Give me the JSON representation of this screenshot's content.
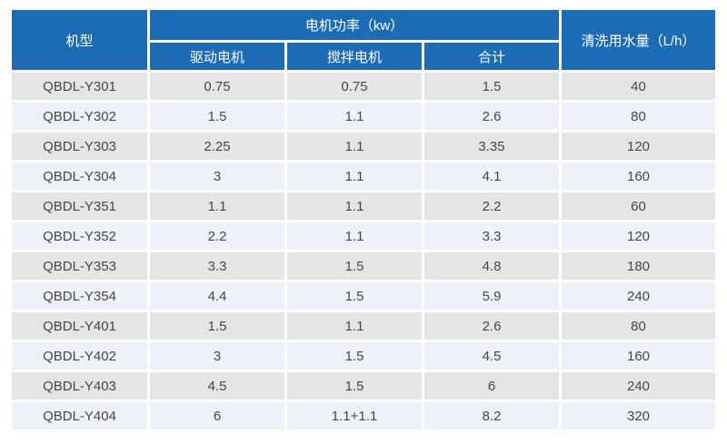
{
  "chart_data": {
    "type": "table",
    "header": {
      "model": "机型",
      "power_group": "电机功率（kw）",
      "drive": "驱动电机",
      "mix": "搅拌电机",
      "total": "合计",
      "water": "清洗用水量（L/h）"
    },
    "rows": [
      {
        "model": "QBDL-Y301",
        "drive": "0.75",
        "mix": "0.75",
        "total": "1.5",
        "water": "40"
      },
      {
        "model": "QBDL-Y302",
        "drive": "1.5",
        "mix": "1.1",
        "total": "2.6",
        "water": "80"
      },
      {
        "model": "QBDL-Y303",
        "drive": "2.25",
        "mix": "1.1",
        "total": "3.35",
        "water": "120"
      },
      {
        "model": "QBDL-Y304",
        "drive": "3",
        "mix": "1.1",
        "total": "4.1",
        "water": "160"
      },
      {
        "model": "QBDL-Y351",
        "drive": "1.1",
        "mix": "1.1",
        "total": "2.2",
        "water": "60"
      },
      {
        "model": "QBDL-Y352",
        "drive": "2.2",
        "mix": "1.1",
        "total": "3.3",
        "water": "120"
      },
      {
        "model": "QBDL-Y353",
        "drive": "3.3",
        "mix": "1.5",
        "total": "4.8",
        "water": "180"
      },
      {
        "model": "QBDL-Y354",
        "drive": "4.4",
        "mix": "1.5",
        "total": "5.9",
        "water": "240"
      },
      {
        "model": "QBDL-Y401",
        "drive": "1.5",
        "mix": "1.1",
        "total": "2.6",
        "water": "80"
      },
      {
        "model": "QBDL-Y402",
        "drive": "3",
        "mix": "1.5",
        "total": "4.5",
        "water": "160"
      },
      {
        "model": "QBDL-Y403",
        "drive": "4.5",
        "mix": "1.5",
        "total": "6",
        "water": "240"
      },
      {
        "model": "QBDL-Y404",
        "drive": "6",
        "mix": "1.1+1.1",
        "total": "8.2",
        "water": "320"
      }
    ],
    "colors": {
      "header_bg": "#1b6cb5",
      "header_text": "#ffffff",
      "row_odd_bg": "#e5e5e5",
      "row_even_bg": "#eef1f9",
      "cell_text": "#474747"
    }
  }
}
